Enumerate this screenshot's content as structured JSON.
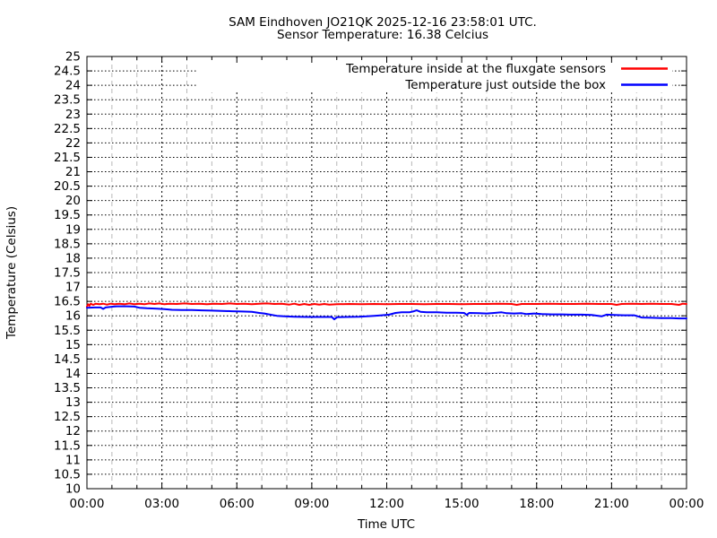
{
  "header": {
    "title_line1": "SAM Eindhoven JO21QK 2025-12-16 23:58:01 UTC.",
    "title_line2": "Sensor Temperature: 16.38 Celcius"
  },
  "chart_data": {
    "type": "line",
    "title": "SAM Eindhoven JO21QK 2025-12-16 23:58:01 UTC.",
    "subtitle": "Sensor Temperature: 16.38 Celcius",
    "sensor_temperature_celsius": 16.38,
    "xlabel": "Time UTC",
    "ylabel": "Temperature (Celsius)",
    "xlim_hours": [
      0,
      24
    ],
    "ylim": [
      10,
      25
    ],
    "y_tick_step": 0.5,
    "x_ticks": [
      "00:00",
      "03:00",
      "06:00",
      "09:00",
      "12:00",
      "15:00",
      "18:00",
      "21:00",
      "00:00"
    ],
    "x_tick_hours": [
      0,
      3,
      6,
      9,
      12,
      15,
      18,
      21,
      24
    ],
    "x_minor_step_hours": 1,
    "grid": true,
    "legend_position": "top-right",
    "background_color": "#ffffff",
    "border_color": "#000000",
    "grid_major_color": "#000000",
    "grid_minor_color": "#b8b8b8",
    "series": [
      {
        "name": "Temperature inside at the fluxgate sensors",
        "color": "#ff0000",
        "points": [
          [
            0,
            16.32
          ],
          [
            0.05,
            16.4
          ],
          [
            0.1,
            16.35
          ],
          [
            0.15,
            16.42
          ],
          [
            0.25,
            16.38
          ],
          [
            0.35,
            16.42
          ],
          [
            0.5,
            16.4
          ],
          [
            0.65,
            16.42
          ],
          [
            0.8,
            16.39
          ],
          [
            0.95,
            16.42
          ],
          [
            1.1,
            16.4
          ],
          [
            1.3,
            16.42
          ],
          [
            1.5,
            16.4
          ],
          [
            1.7,
            16.43
          ],
          [
            1.9,
            16.4
          ],
          [
            2.1,
            16.42
          ],
          [
            2.3,
            16.4
          ],
          [
            2.5,
            16.43
          ],
          [
            2.7,
            16.41
          ],
          [
            2.9,
            16.43
          ],
          [
            3.1,
            16.4
          ],
          [
            3.3,
            16.42
          ],
          [
            3.6,
            16.41
          ],
          [
            3.9,
            16.43
          ],
          [
            4.2,
            16.41
          ],
          [
            4.5,
            16.42
          ],
          [
            4.8,
            16.4
          ],
          [
            5.1,
            16.42
          ],
          [
            5.4,
            16.41
          ],
          [
            5.7,
            16.43
          ],
          [
            6.0,
            16.41
          ],
          [
            6.3,
            16.42
          ],
          [
            6.6,
            16.4
          ],
          [
            6.9,
            16.42
          ],
          [
            7.2,
            16.43
          ],
          [
            7.5,
            16.41
          ],
          [
            7.8,
            16.42
          ],
          [
            8.1,
            16.39
          ],
          [
            8.3,
            16.42
          ],
          [
            8.5,
            16.38
          ],
          [
            8.7,
            16.41
          ],
          [
            8.9,
            16.38
          ],
          [
            9.1,
            16.41
          ],
          [
            9.3,
            16.39
          ],
          [
            9.5,
            16.41
          ],
          [
            9.7,
            16.39
          ],
          [
            10.0,
            16.4
          ],
          [
            10.5,
            16.41
          ],
          [
            11.0,
            16.4
          ],
          [
            11.5,
            16.41
          ],
          [
            12.0,
            16.4
          ],
          [
            12.5,
            16.41
          ],
          [
            13.0,
            16.41
          ],
          [
            13.5,
            16.4
          ],
          [
            14.0,
            16.41
          ],
          [
            14.5,
            16.41
          ],
          [
            15.0,
            16.4
          ],
          [
            15.5,
            16.41
          ],
          [
            16.0,
            16.41
          ],
          [
            16.5,
            16.42
          ],
          [
            17.0,
            16.41
          ],
          [
            17.2,
            16.38
          ],
          [
            17.4,
            16.41
          ],
          [
            18.0,
            16.41
          ],
          [
            18.5,
            16.42
          ],
          [
            19.0,
            16.41
          ],
          [
            19.5,
            16.41
          ],
          [
            20.0,
            16.42
          ],
          [
            20.5,
            16.41
          ],
          [
            21.0,
            16.41
          ],
          [
            21.2,
            16.38
          ],
          [
            21.4,
            16.41
          ],
          [
            21.8,
            16.42
          ],
          [
            22.2,
            16.41
          ],
          [
            22.6,
            16.42
          ],
          [
            23.0,
            16.41
          ],
          [
            23.4,
            16.41
          ],
          [
            23.7,
            16.38
          ],
          [
            23.85,
            16.42
          ],
          [
            24,
            16.41
          ]
        ]
      },
      {
        "name": "Temperature just outside the box",
        "color": "#0000ff",
        "points": [
          [
            0,
            16.28
          ],
          [
            0.3,
            16.29
          ],
          [
            0.55,
            16.29
          ],
          [
            0.65,
            16.24
          ],
          [
            0.75,
            16.29
          ],
          [
            0.95,
            16.31
          ],
          [
            1.2,
            16.33
          ],
          [
            1.6,
            16.33
          ],
          [
            1.9,
            16.32
          ],
          [
            2.1,
            16.28
          ],
          [
            2.4,
            16.26
          ],
          [
            2.8,
            16.25
          ],
          [
            3.1,
            16.23
          ],
          [
            3.4,
            16.21
          ],
          [
            3.8,
            16.2
          ],
          [
            4.2,
            16.2
          ],
          [
            4.6,
            16.19
          ],
          [
            5.0,
            16.18
          ],
          [
            5.4,
            16.17
          ],
          [
            5.8,
            16.16
          ],
          [
            6.2,
            16.15
          ],
          [
            6.6,
            16.14
          ],
          [
            6.9,
            16.1
          ],
          [
            7.1,
            16.08
          ],
          [
            7.4,
            16.03
          ],
          [
            7.6,
            16.0
          ],
          [
            7.9,
            15.98
          ],
          [
            8.3,
            15.97
          ],
          [
            8.8,
            15.96
          ],
          [
            9.3,
            15.96
          ],
          [
            9.8,
            15.96
          ],
          [
            9.9,
            15.88
          ],
          [
            10.0,
            15.95
          ],
          [
            10.4,
            15.96
          ],
          [
            10.9,
            15.97
          ],
          [
            11.2,
            15.98
          ],
          [
            11.5,
            16.0
          ],
          [
            11.8,
            16.02
          ],
          [
            12.1,
            16.04
          ],
          [
            12.35,
            16.1
          ],
          [
            12.6,
            16.12
          ],
          [
            12.9,
            16.12
          ],
          [
            13.05,
            16.15
          ],
          [
            13.2,
            16.19
          ],
          [
            13.35,
            16.14
          ],
          [
            13.6,
            16.12
          ],
          [
            14.0,
            16.12
          ],
          [
            14.4,
            16.11
          ],
          [
            14.8,
            16.11
          ],
          [
            15.1,
            16.1
          ],
          [
            15.2,
            16.03
          ],
          [
            15.3,
            16.1
          ],
          [
            15.7,
            16.09
          ],
          [
            16.0,
            16.08
          ],
          [
            16.3,
            16.1
          ],
          [
            16.6,
            16.12
          ],
          [
            16.8,
            16.09
          ],
          [
            17.1,
            16.08
          ],
          [
            17.4,
            16.09
          ],
          [
            17.6,
            16.06
          ],
          [
            17.9,
            16.08
          ],
          [
            18.2,
            16.06
          ],
          [
            18.6,
            16.05
          ],
          [
            19.0,
            16.05
          ],
          [
            19.4,
            16.04
          ],
          [
            19.8,
            16.04
          ],
          [
            20.2,
            16.03
          ],
          [
            20.6,
            15.98
          ],
          [
            20.8,
            16.04
          ],
          [
            21.1,
            16.03
          ],
          [
            21.5,
            16.02
          ],
          [
            21.9,
            16.02
          ],
          [
            22.2,
            15.94
          ],
          [
            22.6,
            15.93
          ],
          [
            23.0,
            15.92
          ],
          [
            23.4,
            15.92
          ],
          [
            23.7,
            15.91
          ],
          [
            24,
            15.91
          ]
        ]
      }
    ]
  }
}
